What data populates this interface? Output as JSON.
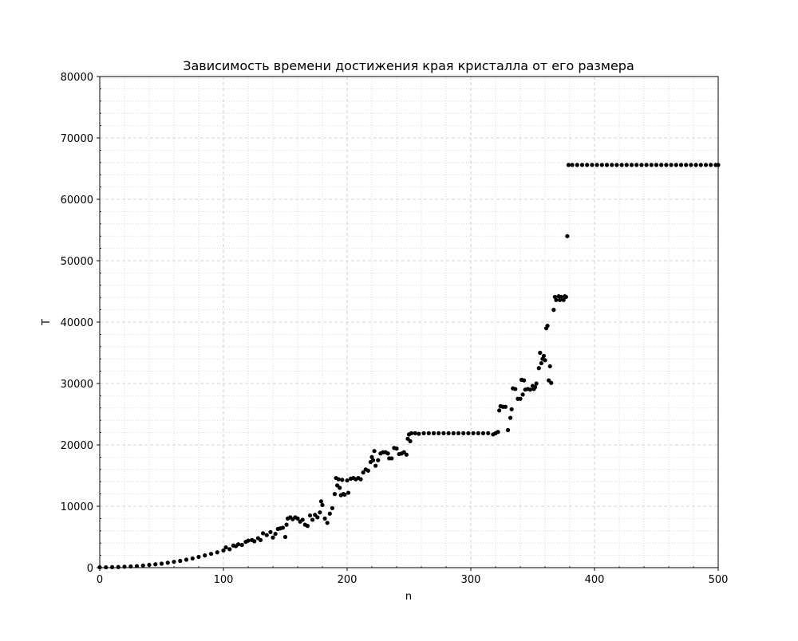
{
  "chart_data": {
    "type": "scatter",
    "title": "Зависимость времени достижения края кристалла от его размера",
    "xlabel": "n",
    "ylabel": "T",
    "xlim": [
      0,
      500
    ],
    "ylim": [
      0,
      80000
    ],
    "x_ticks": [
      0,
      100,
      200,
      300,
      400,
      500
    ],
    "y_ticks": [
      0,
      10000,
      20000,
      30000,
      40000,
      50000,
      60000,
      70000,
      80000
    ],
    "grid": "major dashed, minor dotted",
    "marker_color": "#000000",
    "series": [
      {
        "points": [
          [
            0,
            50
          ],
          [
            5,
            60
          ],
          [
            10,
            80
          ],
          [
            15,
            100
          ],
          [
            20,
            150
          ],
          [
            25,
            200
          ],
          [
            30,
            250
          ],
          [
            35,
            350
          ],
          [
            40,
            450
          ],
          [
            45,
            550
          ],
          [
            50,
            650
          ],
          [
            55,
            800
          ],
          [
            60,
            950
          ],
          [
            65,
            1100
          ],
          [
            70,
            1300
          ],
          [
            75,
            1500
          ],
          [
            80,
            1750
          ],
          [
            85,
            2000
          ],
          [
            90,
            2250
          ],
          [
            95,
            2500
          ],
          [
            100,
            2800
          ],
          [
            102,
            3300
          ],
          [
            105,
            3000
          ],
          [
            108,
            3600
          ],
          [
            110,
            3500
          ],
          [
            112,
            3800
          ],
          [
            115,
            3700
          ],
          [
            118,
            4200
          ],
          [
            120,
            4400
          ],
          [
            123,
            4500
          ],
          [
            125,
            4300
          ],
          [
            128,
            4800
          ],
          [
            130,
            4500
          ],
          [
            132,
            5600
          ],
          [
            135,
            5300
          ],
          [
            138,
            5800
          ],
          [
            140,
            4900
          ],
          [
            142,
            5500
          ],
          [
            144,
            6300
          ],
          [
            146,
            6400
          ],
          [
            148,
            6500
          ],
          [
            150,
            5000
          ],
          [
            151,
            7000
          ],
          [
            152,
            8000
          ],
          [
            154,
            8200
          ],
          [
            156,
            7900
          ],
          [
            158,
            8200
          ],
          [
            160,
            8000
          ],
          [
            162,
            7500
          ],
          [
            164,
            7800
          ],
          [
            166,
            7000
          ],
          [
            168,
            6800
          ],
          [
            170,
            8500
          ],
          [
            172,
            7800
          ],
          [
            174,
            8600
          ],
          [
            176,
            8200
          ],
          [
            178,
            9000
          ],
          [
            179,
            10800
          ],
          [
            180,
            10200
          ],
          [
            182,
            8000
          ],
          [
            184,
            7300
          ],
          [
            186,
            8800
          ],
          [
            188,
            9700
          ],
          [
            190,
            12000
          ],
          [
            191,
            14600
          ],
          [
            192,
            13400
          ],
          [
            193,
            14400
          ],
          [
            194,
            13000
          ],
          [
            195,
            11800
          ],
          [
            196,
            14300
          ],
          [
            197,
            12000
          ],
          [
            198,
            11900
          ],
          [
            200,
            14200
          ],
          [
            201,
            12200
          ],
          [
            203,
            14500
          ],
          [
            205,
            14600
          ],
          [
            207,
            14400
          ],
          [
            209,
            14600
          ],
          [
            211,
            14400
          ],
          [
            213,
            15500
          ],
          [
            215,
            16000
          ],
          [
            217,
            15800
          ],
          [
            219,
            17200
          ],
          [
            220,
            18000
          ],
          [
            221,
            17500
          ],
          [
            222,
            19000
          ],
          [
            223,
            16600
          ],
          [
            225,
            17500
          ],
          [
            227,
            18600
          ],
          [
            229,
            18800
          ],
          [
            231,
            18800
          ],
          [
            233,
            18600
          ],
          [
            234,
            17800
          ],
          [
            236,
            17800
          ],
          [
            238,
            19500
          ],
          [
            240,
            19400
          ],
          [
            242,
            18500
          ],
          [
            244,
            18600
          ],
          [
            246,
            18800
          ],
          [
            248,
            18400
          ],
          [
            249,
            21000
          ],
          [
            250,
            21700
          ],
          [
            251,
            20600
          ],
          [
            252,
            21900
          ],
          [
            255,
            21900
          ],
          [
            258,
            21800
          ],
          [
            262,
            21900
          ],
          [
            266,
            21900
          ],
          [
            270,
            21900
          ],
          [
            274,
            21900
          ],
          [
            278,
            21900
          ],
          [
            282,
            21900
          ],
          [
            286,
            21900
          ],
          [
            290,
            21900
          ],
          [
            294,
            21900
          ],
          [
            298,
            21900
          ],
          [
            302,
            21900
          ],
          [
            306,
            21900
          ],
          [
            310,
            21900
          ],
          [
            314,
            21900
          ],
          [
            318,
            21700
          ],
          [
            320,
            21900
          ],
          [
            322,
            22100
          ],
          [
            323,
            25600
          ],
          [
            324,
            26300
          ],
          [
            326,
            26200
          ],
          [
            328,
            26200
          ],
          [
            330,
            22400
          ],
          [
            332,
            24400
          ],
          [
            333,
            25800
          ],
          [
            334,
            29200
          ],
          [
            336,
            29100
          ],
          [
            338,
            27500
          ],
          [
            340,
            27500
          ],
          [
            341,
            30600
          ],
          [
            342,
            28200
          ],
          [
            343,
            30500
          ],
          [
            344,
            29000
          ],
          [
            346,
            29100
          ],
          [
            348,
            29000
          ],
          [
            350,
            29600
          ],
          [
            351,
            29100
          ],
          [
            352,
            29400
          ],
          [
            353,
            30000
          ],
          [
            355,
            32500
          ],
          [
            356,
            35000
          ],
          [
            357,
            33300
          ],
          [
            358,
            34000
          ],
          [
            359,
            34500
          ],
          [
            360,
            33800
          ],
          [
            361,
            39000
          ],
          [
            362,
            39400
          ],
          [
            363,
            30500
          ],
          [
            364,
            32800
          ],
          [
            365,
            30100
          ],
          [
            367,
            42000
          ],
          [
            368,
            44100
          ],
          [
            369,
            43600
          ],
          [
            371,
            44200
          ],
          [
            372,
            43600
          ],
          [
            373,
            44100
          ],
          [
            375,
            43600
          ],
          [
            376,
            44200
          ],
          [
            377,
            44100
          ],
          [
            378,
            54000
          ],
          [
            379,
            65600
          ],
          [
            382,
            65600
          ],
          [
            386,
            65600
          ],
          [
            390,
            65600
          ],
          [
            394,
            65600
          ],
          [
            398,
            65600
          ],
          [
            402,
            65600
          ],
          [
            406,
            65600
          ],
          [
            410,
            65600
          ],
          [
            414,
            65600
          ],
          [
            418,
            65600
          ],
          [
            422,
            65600
          ],
          [
            426,
            65600
          ],
          [
            430,
            65600
          ],
          [
            434,
            65600
          ],
          [
            438,
            65600
          ],
          [
            442,
            65600
          ],
          [
            446,
            65600
          ],
          [
            450,
            65600
          ],
          [
            454,
            65600
          ],
          [
            458,
            65600
          ],
          [
            462,
            65600
          ],
          [
            466,
            65600
          ],
          [
            470,
            65600
          ],
          [
            474,
            65600
          ],
          [
            478,
            65600
          ],
          [
            482,
            65600
          ],
          [
            486,
            65600
          ],
          [
            490,
            65600
          ],
          [
            494,
            65600
          ],
          [
            498,
            65600
          ],
          [
            500,
            65600
          ]
        ]
      }
    ]
  }
}
